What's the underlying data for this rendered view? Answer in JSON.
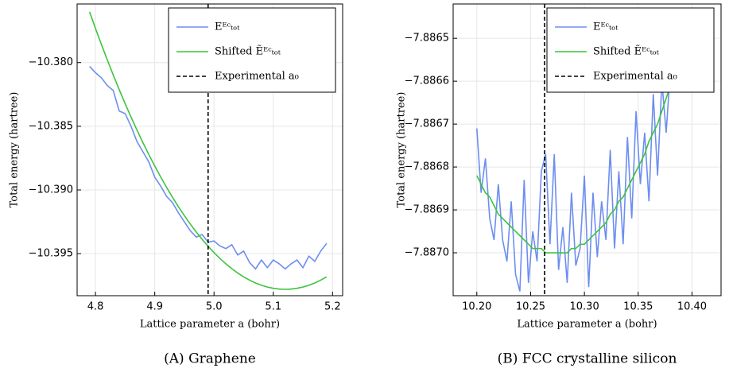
{
  "chart_data": [
    {
      "type": "line",
      "caption": "(A) Graphene",
      "xlabel": "Lattice parameter a (bohr)",
      "ylabel": "Total energy (hartree)",
      "x": [
        4.79,
        4.8,
        4.81,
        4.82,
        4.83,
        4.84,
        4.85,
        4.86,
        4.87,
        4.88,
        4.89,
        4.9,
        4.91,
        4.92,
        4.93,
        4.94,
        4.95,
        4.96,
        4.97,
        4.98,
        4.99,
        5.0,
        5.01,
        5.02,
        5.03,
        5.04,
        5.05,
        5.06,
        5.07,
        5.08,
        5.09,
        5.1,
        5.11,
        5.12,
        5.13,
        5.14,
        5.15,
        5.16,
        5.17,
        5.18,
        5.19
      ],
      "series": [
        {
          "name": "Eᴱᶜₜₒₜ",
          "color": "#6d8ef0",
          "values": [
            -10.3803,
            -10.3808,
            -10.3812,
            -10.3818,
            -10.3822,
            -10.3838,
            -10.384,
            -10.385,
            -10.3862,
            -10.387,
            -10.3878,
            -10.389,
            -10.3897,
            -10.3905,
            -10.391,
            -10.3918,
            -10.3925,
            -10.3932,
            -10.3937,
            -10.3935,
            -10.3941,
            -10.394,
            -10.3944,
            -10.3946,
            -10.3943,
            -10.3951,
            -10.3948,
            -10.3957,
            -10.3962,
            -10.3955,
            -10.3961,
            -10.3955,
            -10.3958,
            -10.3962,
            -10.3958,
            -10.3955,
            -10.3961,
            -10.3952,
            -10.3956,
            -10.3948,
            -10.3942
          ]
        },
        {
          "name": "Shifted Ẽᴱᶜₜₒₜ",
          "color": "#3cc43c",
          "values": [
            -10.37602,
            -10.37732,
            -10.37858,
            -10.3798,
            -10.38098,
            -10.38212,
            -10.38322,
            -10.38428,
            -10.3853,
            -10.38628,
            -10.38722,
            -10.38812,
            -10.38898,
            -10.3898,
            -10.39058,
            -10.39132,
            -10.39202,
            -10.39268,
            -10.3933,
            -10.39388,
            -10.39442,
            -10.39492,
            -10.39538,
            -10.3958,
            -10.39618,
            -10.39652,
            -10.39682,
            -10.39708,
            -10.3973,
            -10.39748,
            -10.39762,
            -10.39772,
            -10.39778,
            -10.3978,
            -10.39778,
            -10.39772,
            -10.39762,
            -10.39748,
            -10.3973,
            -10.39708,
            -10.39682
          ]
        }
      ],
      "vline": {
        "name": "Experimental a₀",
        "value": 4.99,
        "color": "#000000"
      },
      "xlim": [
        4.769,
        5.217
      ],
      "xticks": [
        4.8,
        4.9,
        {
          "value": 5.0,
          "label": "5.0"
        },
        5.1,
        5.2
      ],
      "ylim": [
        -10.3983,
        -10.3754
      ],
      "yticks": [
        {
          "value": -10.38,
          "label": "−10.380"
        },
        {
          "value": -10.385,
          "label": "−10.385"
        },
        {
          "value": -10.39,
          "label": "−10.390"
        },
        {
          "value": -10.395,
          "label": "−10.395"
        }
      ],
      "grid": true,
      "legend": "upper right"
    },
    {
      "type": "line",
      "caption": "(B) FCC crystalline silicon",
      "xlabel": "Lattice parameter a (bohr)",
      "ylabel": "Total energy (hartree)",
      "x": [
        10.2,
        10.204,
        10.208,
        10.212,
        10.216,
        10.22,
        10.224,
        10.228,
        10.232,
        10.236,
        10.24,
        10.244,
        10.248,
        10.252,
        10.256,
        10.26,
        10.264,
        10.268,
        10.272,
        10.276,
        10.28,
        10.284,
        10.288,
        10.292,
        10.296,
        10.3,
        10.304,
        10.308,
        10.312,
        10.316,
        10.32,
        10.324,
        10.328,
        10.332,
        10.336,
        10.34,
        10.344,
        10.348,
        10.352,
        10.356,
        10.36,
        10.364,
        10.368,
        10.372,
        10.376,
        10.38,
        10.384
      ],
      "series": [
        {
          "name": "Eᴱᶜₜₒₜ",
          "color": "#6d8ef0",
          "values": [
            -7.88671,
            -7.88686,
            -7.88678,
            -7.88692,
            -7.88697,
            -7.88684,
            -7.88697,
            -7.88702,
            -7.88688,
            -7.88705,
            -7.88709,
            -7.88683,
            -7.88707,
            -7.88695,
            -7.88702,
            -7.88681,
            -7.88677,
            -7.88698,
            -7.88677,
            -7.88704,
            -7.88694,
            -7.88707,
            -7.88686,
            -7.88703,
            -7.88699,
            -7.88682,
            -7.88708,
            -7.88686,
            -7.88701,
            -7.88688,
            -7.88697,
            -7.88676,
            -7.88699,
            -7.88681,
            -7.88698,
            -7.88673,
            -7.88692,
            -7.88667,
            -7.88684,
            -7.88672,
            -7.88688,
            -7.88663,
            -7.88682,
            -7.8866,
            -7.88672,
            -7.88657,
            -7.88643
          ]
        },
        {
          "name": "Shifted Ẽᴱᶜₜₒₜ",
          "color": "#3cc43c",
          "values": [
            -7.88682,
            -7.88684,
            -7.88686,
            -7.88687,
            -7.88689,
            -7.88691,
            -7.88692,
            -7.88693,
            -7.88694,
            -7.88695,
            -7.88696,
            -7.88697,
            -7.88698,
            -7.88699,
            -7.88699,
            -7.88699,
            -7.887,
            -7.887,
            -7.887,
            -7.887,
            -7.887,
            -7.887,
            -7.88699,
            -7.88699,
            -7.88698,
            -7.88698,
            -7.88697,
            -7.88696,
            -7.88695,
            -7.88694,
            -7.88693,
            -7.88691,
            -7.8869,
            -7.88688,
            -7.88687,
            -7.88685,
            -7.88683,
            -7.88681,
            -7.88679,
            -7.88677,
            -7.88674,
            -7.88672,
            -7.8867,
            -7.88667,
            -7.88664,
            -7.88661,
            -7.88658
          ]
        }
      ],
      "vline": {
        "name": "Experimental a₀",
        "value": 10.263,
        "color": "#000000"
      },
      "xlim": [
        10.178,
        10.427
      ],
      "xticks": [
        {
          "value": 10.2,
          "label": "10.20"
        },
        10.25,
        {
          "value": 10.3,
          "label": "10.30"
        },
        10.35,
        {
          "value": 10.4,
          "label": "10.40"
        }
      ],
      "ylim": [
        -7.8871,
        -7.88642
      ],
      "yticks": [
        {
          "value": -7.8865,
          "label": "−7.8865"
        },
        {
          "value": -7.8866,
          "label": "−7.8866"
        },
        {
          "value": -7.8867,
          "label": "−7.8867"
        },
        {
          "value": -7.8868,
          "label": "−7.8868"
        },
        {
          "value": -7.8869,
          "label": "−7.8869"
        },
        {
          "value": -7.887,
          "label": "−7.8870"
        }
      ],
      "grid": true,
      "legend": "upper right"
    }
  ]
}
